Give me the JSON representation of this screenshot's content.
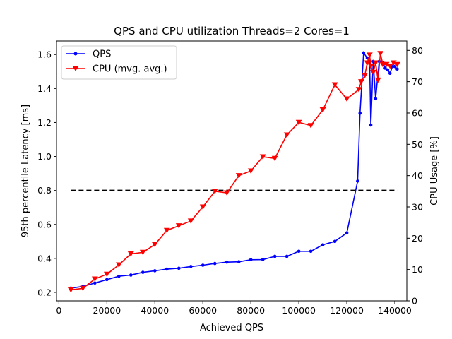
{
  "chart_data": {
    "type": "line",
    "title": "QPS and CPU utilization Threads=2 Cores=1",
    "xlabel": "Achieved QPS",
    "ylabel_left": "95th percentile Latency [ms]",
    "ylabel_right": "CPU Usage [%]",
    "xlim": [
      -1000,
      145000
    ],
    "ylim_left": [
      0.15,
      1.68
    ],
    "ylim_right": [
      0,
      83
    ],
    "x_ticks": [
      0,
      20000,
      40000,
      60000,
      80000,
      100000,
      120000,
      140000
    ],
    "y_ticks_left": [
      0.2,
      0.4,
      0.6,
      0.8,
      1.0,
      1.2,
      1.4,
      1.6
    ],
    "y_ticks_right": [
      0,
      10,
      20,
      30,
      40,
      50,
      60,
      70,
      80
    ],
    "x_tick_labels": [
      "0",
      "20000",
      "40000",
      "60000",
      "80000",
      "100000",
      "120000",
      "140000"
    ],
    "y_tick_labels_left": [
      "0.2",
      "0.4",
      "0.6",
      "0.8",
      "1.0",
      "1.2",
      "1.4",
      "1.6"
    ],
    "y_tick_labels_right": [
      "0",
      "10",
      "20",
      "30",
      "40",
      "50",
      "60",
      "70",
      "80"
    ],
    "legend_position": "top-left",
    "reference_line": {
      "y": 0.8,
      "x_range": [
        5000,
        141000
      ],
      "style": "dashed",
      "color": "#000000"
    },
    "series": [
      {
        "name": "QPS",
        "axis": "left",
        "color": "#0000ff",
        "marker": "circle",
        "x": [
          5000,
          10000,
          15000,
          20000,
          25000,
          30000,
          35000,
          40000,
          45000,
          50000,
          55000,
          60000,
          65000,
          70000,
          75000,
          80000,
          85000,
          90000,
          95000,
          100000,
          105000,
          110000,
          115000,
          120000,
          124500,
          125500,
          127000,
          128500,
          129500,
          130000,
          131000,
          132000,
          133500,
          135000,
          136000,
          137000,
          138000,
          139000,
          140000,
          141000
        ],
        "values": [
          0.225,
          0.235,
          0.255,
          0.275,
          0.295,
          0.302,
          0.318,
          0.327,
          0.337,
          0.342,
          0.352,
          0.36,
          0.37,
          0.378,
          0.38,
          0.392,
          0.393,
          0.412,
          0.412,
          0.442,
          0.442,
          0.48,
          0.5,
          0.55,
          0.855,
          1.255,
          1.61,
          1.58,
          1.56,
          1.185,
          1.56,
          1.34,
          1.56,
          1.555,
          1.52,
          1.51,
          1.49,
          1.53,
          1.53,
          1.515
        ]
      },
      {
        "name": "CPU (mvg. avg.)",
        "axis": "right",
        "color": "#ff0000",
        "marker": "triangle-down",
        "x": [
          5000,
          10000,
          15000,
          20000,
          25000,
          30000,
          35000,
          40000,
          45000,
          50000,
          55000,
          60000,
          65000,
          70000,
          75000,
          80000,
          85000,
          90000,
          95000,
          100000,
          105000,
          110000,
          115000,
          120000,
          125000,
          126000,
          127500,
          128500,
          129500,
          130000,
          131000,
          132000,
          133000,
          134000,
          135000,
          136500,
          138000,
          139500,
          141000
        ],
        "values": [
          3.5,
          4.0,
          7.0,
          8.5,
          11.5,
          15.0,
          15.5,
          18.0,
          22.5,
          24.0,
          25.5,
          30.0,
          35.0,
          34.5,
          40.0,
          41.5,
          46.0,
          45.5,
          53.0,
          57.0,
          56.0,
          61.0,
          69.0,
          64.5,
          67.5,
          70.0,
          72.0,
          76.0,
          78.5,
          75.0,
          73.0,
          76.0,
          70.5,
          79.0,
          75.5,
          75.5,
          75.0,
          76.0,
          75.5
        ]
      }
    ]
  }
}
